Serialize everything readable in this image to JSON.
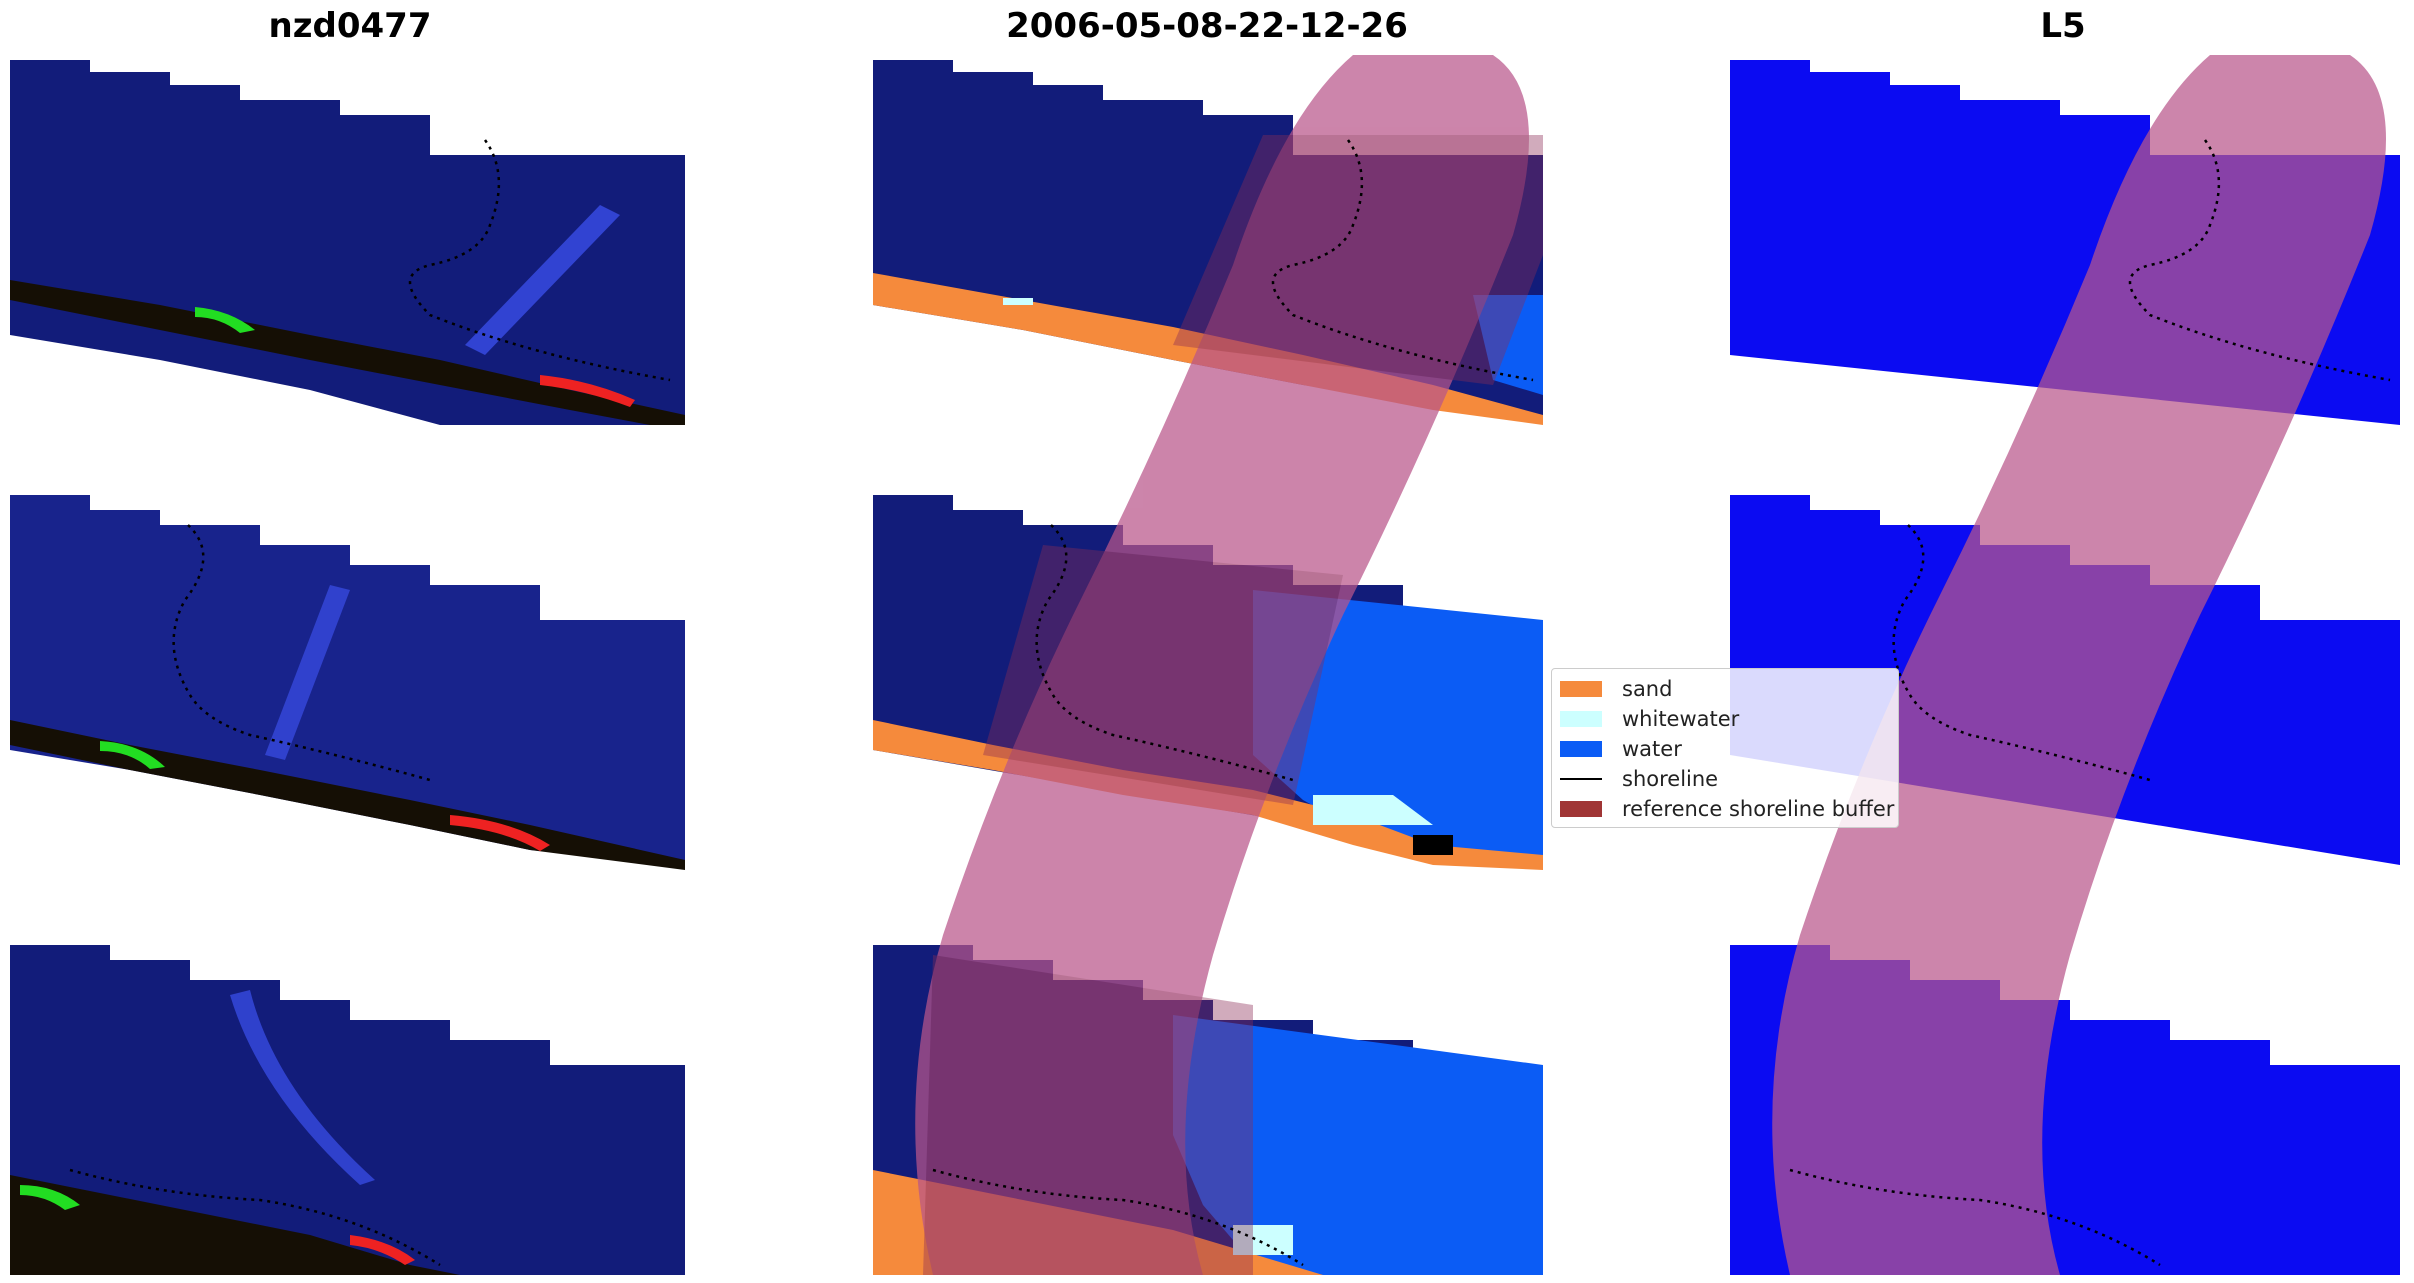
{
  "titles": {
    "left": "nzd0477",
    "middle": "2006-05-08-22-12-26",
    "right": "L5"
  },
  "legend": {
    "items": [
      {
        "label": "sand",
        "color": "#f58a3c",
        "kind": "patch"
      },
      {
        "label": "whitewater",
        "color": "#ccffff",
        "kind": "patch"
      },
      {
        "label": "water",
        "color": "#0b5cf5",
        "kind": "patch"
      },
      {
        "label": "shoreline",
        "color": "#000000",
        "kind": "line"
      },
      {
        "label": "reference shoreline buffer",
        "color": "#a03535",
        "kind": "patch"
      }
    ]
  },
  "colors": {
    "rgb_water": "#121c7a",
    "rgb_water_light": "#18238c",
    "rgb_land": "#150f05",
    "class_water": "#0b5cf5",
    "class_sand": "#f58a3c",
    "class_whitewater": "#ccffff",
    "buffer": "#b9568a",
    "l5_water": "#0b0bf2",
    "wave_streak": "#3a4ee8"
  },
  "panels": [
    {
      "name": "rgb-image-panel",
      "view": "rgb"
    },
    {
      "name": "classified-image-panel",
      "view": "classified"
    },
    {
      "name": "l5-mndwi-panel",
      "view": "l5"
    }
  ]
}
